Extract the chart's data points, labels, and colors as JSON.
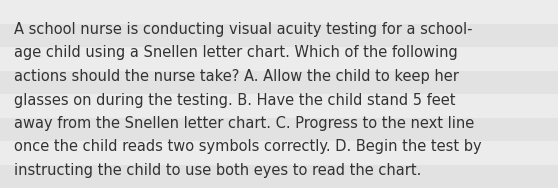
{
  "lines": [
    "A school nurse is conducting visual acuity testing for a school-",
    "age child using a Snellen letter chart. Which of the following",
    "actions should the nurse take? A. Allow the child to keep her",
    "glasses on during the testing. B. Have the child stand 5 feet",
    "away from the Snellen letter chart. C. Progress to the next line",
    "once the child reads two symbols correctly. D. Begin the test by",
    "instructing the child to use both eyes to read the chart."
  ],
  "background_color": "#ebebeb",
  "stripe_colors": [
    "#e2e2e2",
    "#ececec"
  ],
  "text_color": "#333333",
  "font_size": 10.5,
  "fig_width": 5.58,
  "fig_height": 1.88,
  "dpi": 100
}
